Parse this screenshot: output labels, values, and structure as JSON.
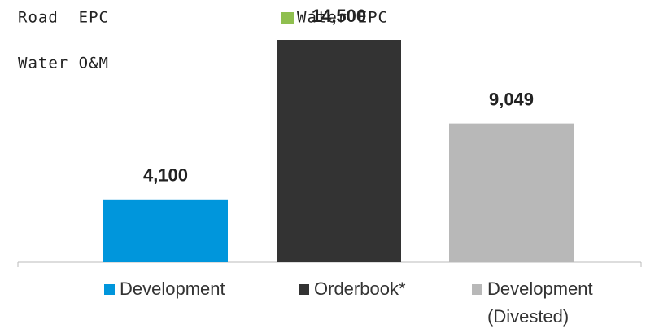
{
  "chart_data": {
    "type": "bar",
    "categories": [
      "Development",
      "Orderbook*",
      "Development (Divested)"
    ],
    "values": [
      4100,
      14500,
      9049
    ],
    "value_labels": [
      "4,100",
      "14,500",
      "9,049"
    ],
    "colors": [
      "#0096dc",
      "#333333",
      "#b8b8b8"
    ],
    "annotations": [
      {
        "text": "Road  EPC"
      },
      {
        "text": "Water EPC",
        "color": "#8fbf4f"
      },
      {
        "text": "Water O&M"
      }
    ]
  }
}
